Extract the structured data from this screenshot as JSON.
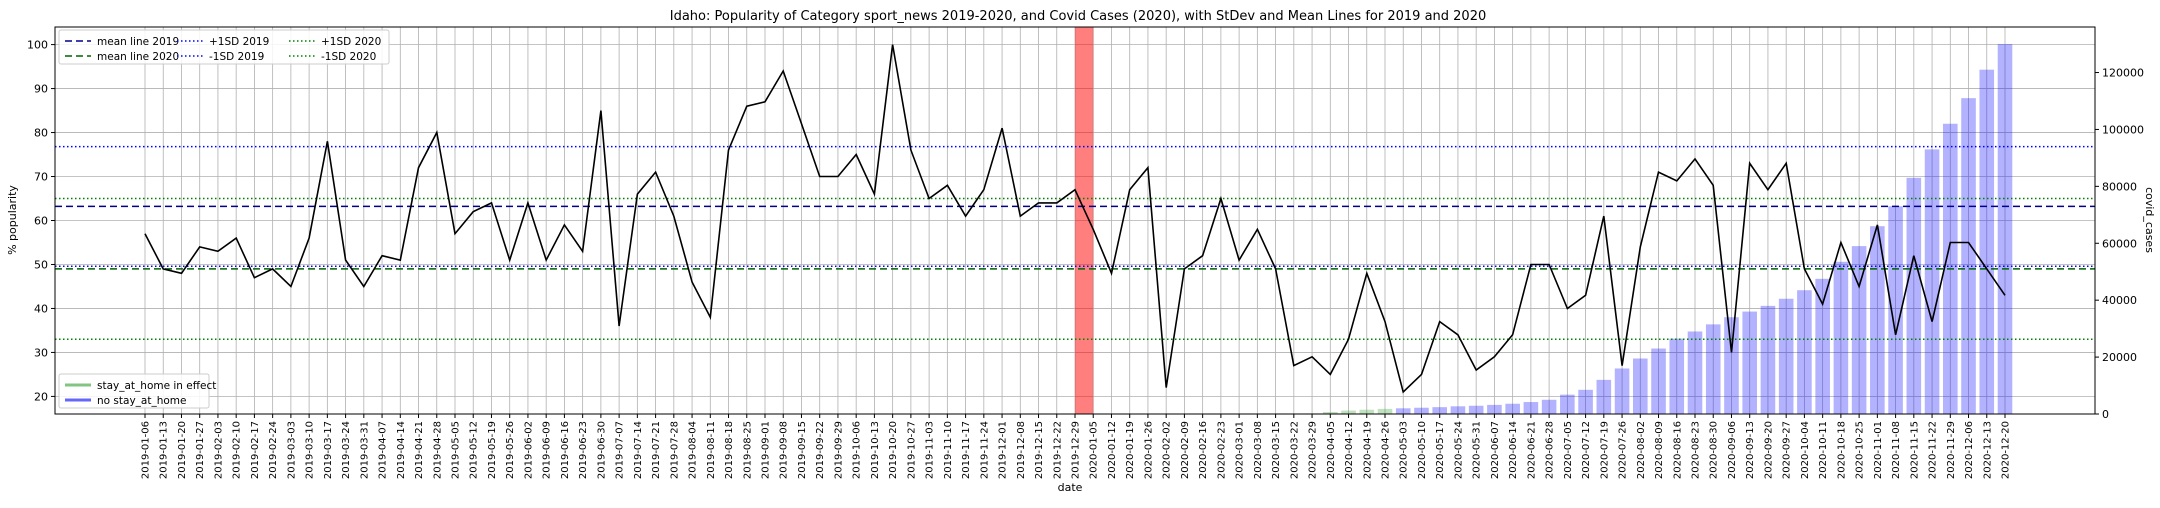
{
  "chart_data": {
    "type": "line",
    "title": "Idaho: Popularity of Category sport_news 2019-2020, and Covid Cases (2020), with StDev and Mean Lines for 2019 and 2020",
    "xlabel": "date",
    "ylabel": "% popularity",
    "y2label": "covid_cases",
    "ylim": [
      16,
      104
    ],
    "y2lim": [
      0,
      136000
    ],
    "yticks": [
      20,
      30,
      40,
      50,
      60,
      70,
      80,
      90,
      100
    ],
    "y2ticks": [
      0,
      20000,
      40000,
      60000,
      80000,
      100000,
      120000
    ],
    "grid": true,
    "legend_top_position": "upper-left",
    "legend_bottom_position": "lower-left",
    "dates": [
      "2019-01-06",
      "2019-01-13",
      "2019-01-20",
      "2019-01-27",
      "2019-02-03",
      "2019-02-10",
      "2019-02-17",
      "2019-02-24",
      "2019-03-03",
      "2019-03-10",
      "2019-03-17",
      "2019-03-24",
      "2019-03-31",
      "2019-04-07",
      "2019-04-14",
      "2019-04-21",
      "2019-04-28",
      "2019-05-05",
      "2019-05-12",
      "2019-05-19",
      "2019-05-26",
      "2019-06-02",
      "2019-06-09",
      "2019-06-16",
      "2019-06-23",
      "2019-06-30",
      "2019-07-07",
      "2019-07-14",
      "2019-07-21",
      "2019-07-28",
      "2019-08-04",
      "2019-08-11",
      "2019-08-18",
      "2019-08-25",
      "2019-09-01",
      "2019-09-08",
      "2019-09-15",
      "2019-09-22",
      "2019-09-29",
      "2019-10-06",
      "2019-10-13",
      "2019-10-20",
      "2019-10-27",
      "2019-11-03",
      "2019-11-10",
      "2019-11-17",
      "2019-11-24",
      "2019-12-01",
      "2019-12-08",
      "2019-12-15",
      "2019-12-22",
      "2019-12-29",
      "2020-01-05",
      "2020-01-12",
      "2020-01-19",
      "2020-01-26",
      "2020-02-02",
      "2020-02-09",
      "2020-02-16",
      "2020-02-23",
      "2020-03-01",
      "2020-03-08",
      "2020-03-15",
      "2020-03-22",
      "2020-03-29",
      "2020-04-05",
      "2020-04-12",
      "2020-04-19",
      "2020-04-26",
      "2020-05-03",
      "2020-05-10",
      "2020-05-17",
      "2020-05-24",
      "2020-05-31",
      "2020-06-07",
      "2020-06-14",
      "2020-06-21",
      "2020-06-28",
      "2020-07-05",
      "2020-07-12",
      "2020-07-19",
      "2020-07-26",
      "2020-08-02",
      "2020-08-09",
      "2020-08-16",
      "2020-08-23",
      "2020-08-30",
      "2020-09-06",
      "2020-09-13",
      "2020-09-20",
      "2020-09-27",
      "2020-10-04",
      "2020-10-11",
      "2020-10-18",
      "2020-10-25",
      "2020-11-01",
      "2020-11-08",
      "2020-11-15",
      "2020-11-22",
      "2020-11-29",
      "2020-12-06",
      "2020-12-13",
      "2020-12-20"
    ],
    "series": [
      {
        "name": "",
        "axis": "left",
        "kind": "line",
        "color": "#000000",
        "values": [
          57,
          49,
          48,
          54,
          53,
          56,
          47,
          49,
          45,
          56,
          78,
          51,
          45,
          52,
          51,
          72,
          80,
          57,
          62,
          64,
          51,
          64,
          51,
          59,
          53,
          85,
          36,
          66,
          71,
          61,
          46,
          38,
          76,
          86,
          87,
          94,
          82,
          70,
          70,
          75,
          66,
          100,
          76,
          65,
          68,
          61,
          67,
          81,
          61,
          64,
          64,
          67,
          58,
          48,
          67,
          72,
          22,
          49,
          52,
          65,
          51,
          58,
          49,
          27,
          29,
          25,
          33,
          48,
          37,
          21,
          25,
          37,
          34,
          26,
          29,
          34,
          50,
          50,
          40,
          43,
          61,
          27,
          54,
          71,
          69,
          74,
          68,
          30,
          73,
          67,
          73,
          49,
          41,
          55,
          45,
          59,
          34,
          52,
          37,
          55,
          55,
          49,
          43
        ]
      },
      {
        "name": "",
        "axis": "right",
        "kind": "bar",
        "color": "#0000ff",
        "values": [
          null,
          null,
          null,
          null,
          null,
          null,
          null,
          null,
          null,
          null,
          null,
          null,
          null,
          null,
          null,
          null,
          null,
          null,
          null,
          null,
          null,
          null,
          null,
          null,
          null,
          null,
          null,
          null,
          null,
          null,
          null,
          null,
          null,
          null,
          null,
          null,
          null,
          null,
          null,
          null,
          null,
          null,
          null,
          null,
          null,
          null,
          null,
          null,
          null,
          null,
          null,
          null,
          null,
          null,
          null,
          null,
          null,
          null,
          null,
          null,
          null,
          null,
          null,
          null,
          200,
          700,
          1200,
          1500,
          1800,
          2000,
          2200,
          2400,
          2700,
          2900,
          3200,
          3600,
          4200,
          5000,
          6800,
          8500,
          12000,
          16000,
          19500,
          23000,
          26500,
          29000,
          31500,
          34000,
          36000,
          38000,
          40500,
          43500,
          47500,
          53500,
          59000,
          66000,
          73000,
          83000,
          93000,
          102000,
          111000,
          121000,
          130000
        ]
      }
    ],
    "reference_lines": [
      {
        "name": "mean line 2019",
        "value": 63.2,
        "color": "#00008b",
        "style": "dashed"
      },
      {
        "name": "mean line 2020",
        "value": 49.0,
        "color": "#006400",
        "style": "dashed"
      },
      {
        "name": "+1SD 2019",
        "value": 76.8,
        "color": "#0000ff",
        "style": "dotted"
      },
      {
        "name": "-1SD 2019",
        "value": 49.6,
        "color": "#0000ff",
        "style": "dotted"
      },
      {
        "name": "+1SD 2020",
        "value": 65.0,
        "color": "#008000",
        "style": "dotted"
      },
      {
        "name": "-1SD 2020",
        "value": 33.0,
        "color": "#008000",
        "style": "dotted"
      }
    ],
    "highlight_band": {
      "from": "2019-12-29",
      "to": "2020-01-05",
      "color": "#ff0000"
    },
    "legend_top": [
      {
        "label": "mean line 2019",
        "color": "#00008b",
        "style": "dashed"
      },
      {
        "label": "mean line 2020",
        "color": "#006400",
        "style": "dashed"
      },
      {
        "label": "+1SD 2019",
        "color": "#0000ff",
        "style": "dotted"
      },
      {
        "label": "-1SD 2019",
        "color": "#0000ff",
        "style": "dotted"
      },
      {
        "label": "+1SD 2020",
        "color": "#008000",
        "style": "dotted"
      },
      {
        "label": "-1SD 2020",
        "color": "#008000",
        "style": "dotted"
      }
    ],
    "legend_bottom": [
      {
        "label": "stay_at_home in effect",
        "color": "#2ca02c"
      },
      {
        "label": "no stay_at_home",
        "color": "#0000ff"
      }
    ],
    "stay_at_home_dates": [
      "2020-03-29",
      "2020-04-05",
      "2020-04-12",
      "2020-04-19",
      "2020-04-26"
    ]
  }
}
